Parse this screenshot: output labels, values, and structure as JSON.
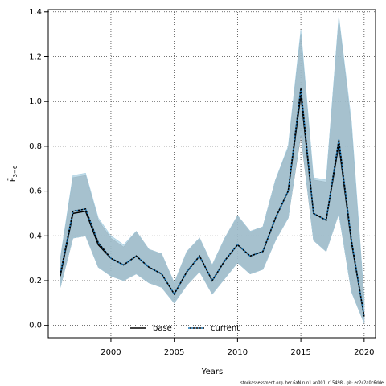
{
  "chart_data": {
    "type": "line",
    "xlabel": "Years",
    "ylabel": {
      "main": "F̄",
      "sub": "3−6"
    },
    "footnote": "stockassessment.org, her.6aN.run1 an001, r15498 , git: ec2c2a0c6dde",
    "x": [
      1996,
      1997,
      1998,
      1999,
      2000,
      2001,
      2002,
      2003,
      2004,
      2005,
      2006,
      2007,
      2008,
      2009,
      2010,
      2011,
      2012,
      2013,
      2014,
      2015,
      2016,
      2017,
      2018,
      2019,
      2020
    ],
    "series": [
      {
        "name": "base",
        "color": "#000000",
        "band_color": "#808080",
        "dash": "none",
        "values": [
          0.22,
          0.5,
          0.51,
          0.36,
          0.3,
          0.27,
          0.31,
          0.26,
          0.23,
          0.14,
          0.24,
          0.31,
          0.2,
          0.29,
          0.36,
          0.31,
          0.33,
          0.48,
          0.6,
          1.03,
          0.5,
          0.47,
          0.81,
          0.37,
          0.04
        ],
        "upper": [
          0.29,
          0.66,
          0.67,
          0.47,
          0.39,
          0.35,
          0.42,
          0.34,
          0.32,
          0.19,
          0.33,
          0.39,
          0.27,
          0.39,
          0.49,
          0.42,
          0.44,
          0.65,
          0.79,
          1.3,
          0.65,
          0.64,
          1.37,
          0.88,
          0.11
        ],
        "lower": [
          0.17,
          0.39,
          0.4,
          0.26,
          0.22,
          0.2,
          0.23,
          0.19,
          0.17,
          0.1,
          0.18,
          0.24,
          0.14,
          0.21,
          0.28,
          0.23,
          0.25,
          0.38,
          0.48,
          0.85,
          0.38,
          0.33,
          0.5,
          0.15,
          0.01
        ]
      },
      {
        "name": "current",
        "color": "#1f77b4",
        "band_color": "#a6cde0",
        "dash": "2,2",
        "values": [
          0.23,
          0.51,
          0.52,
          0.37,
          0.3,
          0.27,
          0.31,
          0.26,
          0.23,
          0.14,
          0.24,
          0.31,
          0.2,
          0.29,
          0.36,
          0.31,
          0.33,
          0.48,
          0.6,
          1.06,
          0.5,
          0.47,
          0.83,
          0.38,
          0.04
        ],
        "upper": [
          0.3,
          0.67,
          0.68,
          0.48,
          0.4,
          0.36,
          0.42,
          0.34,
          0.32,
          0.19,
          0.33,
          0.39,
          0.27,
          0.39,
          0.49,
          0.42,
          0.44,
          0.65,
          0.8,
          1.32,
          0.66,
          0.65,
          1.38,
          0.91,
          0.12
        ],
        "lower": [
          0.17,
          0.39,
          0.4,
          0.26,
          0.22,
          0.2,
          0.23,
          0.19,
          0.17,
          0.1,
          0.18,
          0.24,
          0.14,
          0.21,
          0.28,
          0.23,
          0.25,
          0.38,
          0.48,
          0.86,
          0.38,
          0.33,
          0.5,
          0.15,
          0.01
        ]
      }
    ],
    "xlim": [
      1995.05,
      2020.9
    ],
    "ylim": [
      -0.055,
      1.41
    ],
    "xticks": [
      2000,
      2005,
      2010,
      2015,
      2020
    ],
    "yticks": [
      {
        "value": 0,
        "label": "0.0"
      },
      0.2,
      0.4,
      0.6,
      0.8,
      {
        "value": 1,
        "label": "1.0"
      },
      1.2,
      1.4
    ],
    "grid": true,
    "legend": "bottom"
  }
}
